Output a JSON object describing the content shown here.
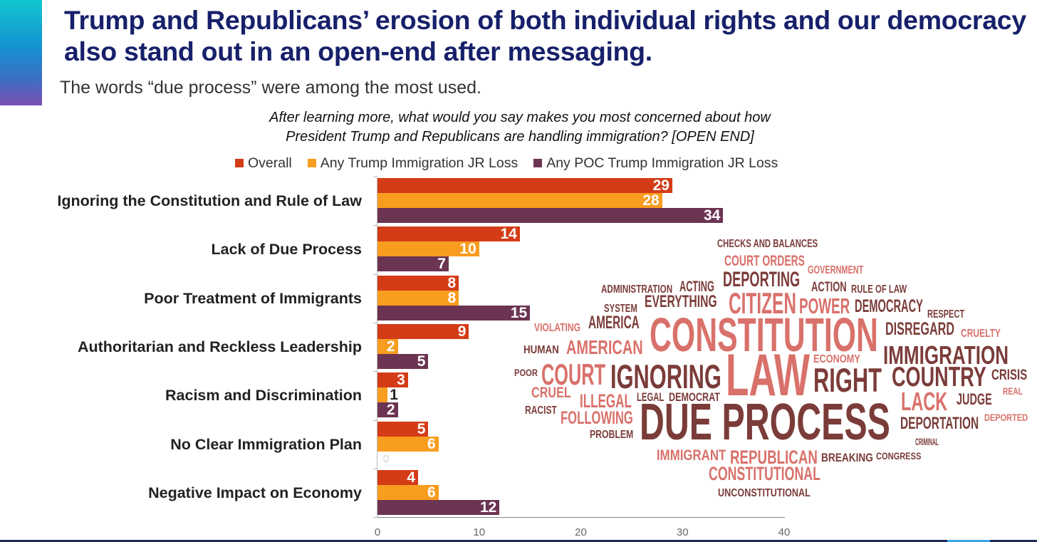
{
  "header": {
    "title": "Trump and Republicans’ erosion of both individual rights and our democracy also stand out in an open-end after messaging.",
    "subtitle": "The words “due process” were among the most used."
  },
  "chart_data": {
    "type": "bar",
    "orientation": "horizontal",
    "title": "After learning more, what would you say makes you most concerned about how President Trump and Republicans are handling immigration? [OPEN END]",
    "title_lines": [
      "After learning more, what would you say makes you most concerned about how",
      "President Trump and Republicans are handling immigration? [OPEN END]"
    ],
    "categories": [
      "Ignoring the Constitution and Rule of Law",
      "Lack of Due Process",
      "Poor Treatment of Immigrants",
      "Authoritarian and Reckless Leadership",
      "Racism and Discrimination",
      "No Clear Immigration Plan",
      "Negative Impact on Economy"
    ],
    "series": [
      {
        "name": "Overall",
        "color": "#d43c17",
        "values": [
          29,
          14,
          8,
          9,
          3,
          5,
          4
        ]
      },
      {
        "name": "Any Trump Immigration JR Loss",
        "color": "#f89d1f",
        "values": [
          28,
          10,
          8,
          2,
          1,
          6,
          6
        ]
      },
      {
        "name": "Any POC Trump Immigration JR Loss",
        "color": "#6b3452",
        "values": [
          34,
          7,
          15,
          5,
          2,
          0,
          12
        ]
      }
    ],
    "xlim": [
      0,
      40
    ],
    "xticks": [
      "0",
      "10",
      "20",
      "30",
      "40"
    ],
    "legend": "top",
    "grid": false
  },
  "word_cloud": {
    "colors": {
      "dark": "#7b3c39",
      "light": "#d9716b"
    },
    "words": [
      {
        "text": "CHECKS AND BALANCES",
        "tone": "dark"
      },
      {
        "text": "COURT ORDERS",
        "tone": "light"
      },
      {
        "text": "GOVERNMENT",
        "tone": "light"
      },
      {
        "text": "DEPORTING",
        "tone": "dark"
      },
      {
        "text": "ACTION",
        "tone": "dark"
      },
      {
        "text": "RULE OF LAW",
        "tone": "dark"
      },
      {
        "text": "ADMINISTRATION",
        "tone": "dark"
      },
      {
        "text": "ACTING",
        "tone": "dark"
      },
      {
        "text": "EVERYTHING",
        "tone": "dark"
      },
      {
        "text": "CITIZEN",
        "tone": "light"
      },
      {
        "text": "POWER",
        "tone": "light"
      },
      {
        "text": "DEMOCRACY",
        "tone": "dark"
      },
      {
        "text": "SYSTEM",
        "tone": "dark"
      },
      {
        "text": "RESPECT",
        "tone": "dark"
      },
      {
        "text": "VIOLATING",
        "tone": "light"
      },
      {
        "text": "AMERICA",
        "tone": "dark"
      },
      {
        "text": "CONSTITUTION",
        "tone": "light"
      },
      {
        "text": "DISREGARD",
        "tone": "dark"
      },
      {
        "text": "CRUELTY",
        "tone": "light"
      },
      {
        "text": "HUMAN",
        "tone": "dark"
      },
      {
        "text": "AMERICAN",
        "tone": "light"
      },
      {
        "text": "ECONOMY",
        "tone": "light"
      },
      {
        "text": "IMMIGRATION",
        "tone": "dark"
      },
      {
        "text": "POOR",
        "tone": "dark"
      },
      {
        "text": "COURT",
        "tone": "light"
      },
      {
        "text": "IGNORING",
        "tone": "dark"
      },
      {
        "text": "LAW",
        "tone": "light"
      },
      {
        "text": "RIGHT",
        "tone": "dark"
      },
      {
        "text": "COUNTRY",
        "tone": "dark"
      },
      {
        "text": "CRISIS",
        "tone": "dark"
      },
      {
        "text": "CRUEL",
        "tone": "light"
      },
      {
        "text": "REAL",
        "tone": "light"
      },
      {
        "text": "ILLEGAL",
        "tone": "light"
      },
      {
        "text": "LEGAL",
        "tone": "dark"
      },
      {
        "text": "DEMOCRAT",
        "tone": "dark"
      },
      {
        "text": "LACK",
        "tone": "light"
      },
      {
        "text": "JUDGE",
        "tone": "dark"
      },
      {
        "text": "RACIST",
        "tone": "dark"
      },
      {
        "text": "FOLLOWING",
        "tone": "light"
      },
      {
        "text": "DUE PROCESS",
        "tone": "dark"
      },
      {
        "text": "DEPORTED",
        "tone": "light"
      },
      {
        "text": "DEPORTATION",
        "tone": "dark"
      },
      {
        "text": "PROBLEM",
        "tone": "dark"
      },
      {
        "text": "CRIMINAL",
        "tone": "dark"
      },
      {
        "text": "IMMIGRANT",
        "tone": "light"
      },
      {
        "text": "REPUBLICAN",
        "tone": "light"
      },
      {
        "text": "BREAKING",
        "tone": "dark"
      },
      {
        "text": "CONGRESS",
        "tone": "dark"
      },
      {
        "text": "CONSTITUTIONAL",
        "tone": "light"
      },
      {
        "text": "UNCONSTITUTIONAL",
        "tone": "dark"
      }
    ]
  }
}
